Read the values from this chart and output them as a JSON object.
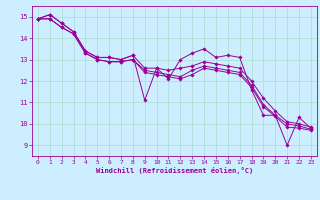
{
  "title": "",
  "xlabel": "Windchill (Refroidissement éolien,°C)",
  "ylabel": "",
  "bg_color": "#cceeff",
  "grid_color": "#aaddcc",
  "line_color": "#990099",
  "xlim": [
    -0.5,
    23.5
  ],
  "ylim": [
    8.5,
    15.5
  ],
  "yticks": [
    9,
    10,
    11,
    12,
    13,
    14,
    15
  ],
  "xticks": [
    0,
    1,
    2,
    3,
    4,
    5,
    6,
    7,
    8,
    9,
    10,
    11,
    12,
    13,
    14,
    15,
    16,
    17,
    18,
    19,
    20,
    21,
    22,
    23
  ],
  "series": [
    [
      14.9,
      15.1,
      14.7,
      14.3,
      13.4,
      13.1,
      13.1,
      13.0,
      13.2,
      11.1,
      12.6,
      12.1,
      13.0,
      13.3,
      13.5,
      13.1,
      13.2,
      13.1,
      11.6,
      10.4,
      10.4,
      9.0,
      10.3,
      9.8
    ],
    [
      14.9,
      15.1,
      14.7,
      14.3,
      13.4,
      13.1,
      13.1,
      13.0,
      13.2,
      12.6,
      12.6,
      12.5,
      12.6,
      12.7,
      12.9,
      12.8,
      12.7,
      12.6,
      12.0,
      11.2,
      10.6,
      10.1,
      10.0,
      9.85
    ],
    [
      14.9,
      14.9,
      14.5,
      14.2,
      13.3,
      13.0,
      12.9,
      12.9,
      13.0,
      12.5,
      12.4,
      12.3,
      12.2,
      12.5,
      12.7,
      12.6,
      12.5,
      12.4,
      11.8,
      10.9,
      10.4,
      10.0,
      9.9,
      9.75
    ],
    [
      14.9,
      14.9,
      14.5,
      14.2,
      13.3,
      13.0,
      12.9,
      12.9,
      13.0,
      12.4,
      12.3,
      12.2,
      12.1,
      12.3,
      12.6,
      12.5,
      12.4,
      12.3,
      11.7,
      10.8,
      10.35,
      9.85,
      9.8,
      9.7
    ]
  ],
  "xlabel_fontsize": 5.0,
  "xlabel_fontweight": "bold",
  "tick_fontsize": 4.5,
  "marker_size": 1.8,
  "line_width": 0.7
}
